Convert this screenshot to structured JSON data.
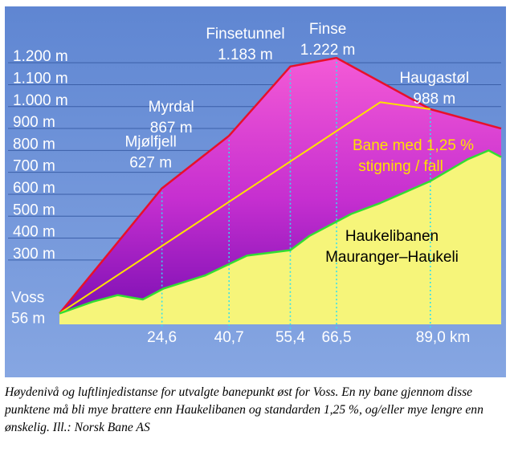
{
  "chart_data": {
    "type": "area",
    "xlim": [
      0,
      106
    ],
    "ylim": [
      56,
      1250
    ],
    "grid": true,
    "yticks": [
      {
        "value": 1200,
        "label": "1.200 m"
      },
      {
        "value": 1100,
        "label": "1.100 m"
      },
      {
        "value": 1000,
        "label": "1.000 m"
      },
      {
        "value": 900,
        "label": "900 m"
      },
      {
        "value": 800,
        "label": "800 m"
      },
      {
        "value": 700,
        "label": "700 m"
      },
      {
        "value": 600,
        "label": "600 m"
      },
      {
        "value": 500,
        "label": "500 m"
      },
      {
        "value": 400,
        "label": "400 m"
      },
      {
        "value": 300,
        "label": "300 m"
      }
    ],
    "xticks": [
      {
        "value": 24.6,
        "label": "24,6"
      },
      {
        "value": 40.7,
        "label": "40,7"
      },
      {
        "value": 55.4,
        "label": "55,4"
      },
      {
        "value": 66.5,
        "label": "66,5"
      },
      {
        "value": 89.0,
        "label": "89,0 km"
      }
    ],
    "series": [
      {
        "name": "",
        "color": "#e8102a",
        "x": [
          0,
          24.6,
          40.7,
          55.4,
          66.5,
          89.0,
          106
        ],
        "y": [
          56,
          627,
          867,
          1183,
          1222,
          988,
          900
        ]
      },
      {
        "name": "Bane med 1,25 % stigning / fall",
        "color": "#ffe000",
        "x": [
          0,
          77,
          89.0
        ],
        "y": [
          56,
          1020,
          988
        ]
      },
      {
        "name": "Haukelibanen Mauranger–Haukeli",
        "color": "#33dd33",
        "x": [
          0,
          8,
          14,
          20,
          25,
          35,
          45,
          55.4,
          60,
          70,
          77,
          89.0,
          98,
          103,
          106
        ],
        "y": [
          56,
          110,
          140,
          120,
          170,
          230,
          320,
          345,
          410,
          510,
          560,
          660,
          760,
          800,
          770
        ]
      }
    ],
    "points": [
      {
        "name": "Voss",
        "elevation": "56 m",
        "x": 0,
        "y": 56
      },
      {
        "name": "Mjølfjell",
        "elevation": "627 m",
        "x": 24.6,
        "y": 627
      },
      {
        "name": "Myrdal",
        "elevation": "867 m",
        "x": 40.7,
        "y": 867
      },
      {
        "name": "Finsetunnel",
        "elevation": "1.183 m",
        "x": 55.4,
        "y": 1183
      },
      {
        "name": "Finse",
        "elevation": "1.222 m",
        "x": 66.5,
        "y": 1222
      },
      {
        "name": "Haugastøl",
        "elevation": "988 m",
        "x": 89.0,
        "y": 988
      }
    ],
    "annotations": {
      "slope_line1": "Bane med 1,25 %",
      "slope_line2": "stigning / fall",
      "haukeli_line1": "Haukelibanen",
      "haukeli_line2": "Mauranger–Haukeli"
    }
  },
  "colors": {
    "background": "#6a8fd6",
    "yellow_fill": "#f6f57a",
    "magenta_top": "#f04fcf",
    "magenta_bottom": "#8a0fb8",
    "dotted_line": "#33e0ee"
  },
  "caption": "Høydenivå og luftlinjedistanse for utvalgte banepunkt øst for Voss. En ny bane gjennom disse punktene må bli mye brattere enn Haukelibanen og standarden 1,25 %, og/eller mye lengre enn ønskelig. Ill.: Norsk Bane AS"
}
